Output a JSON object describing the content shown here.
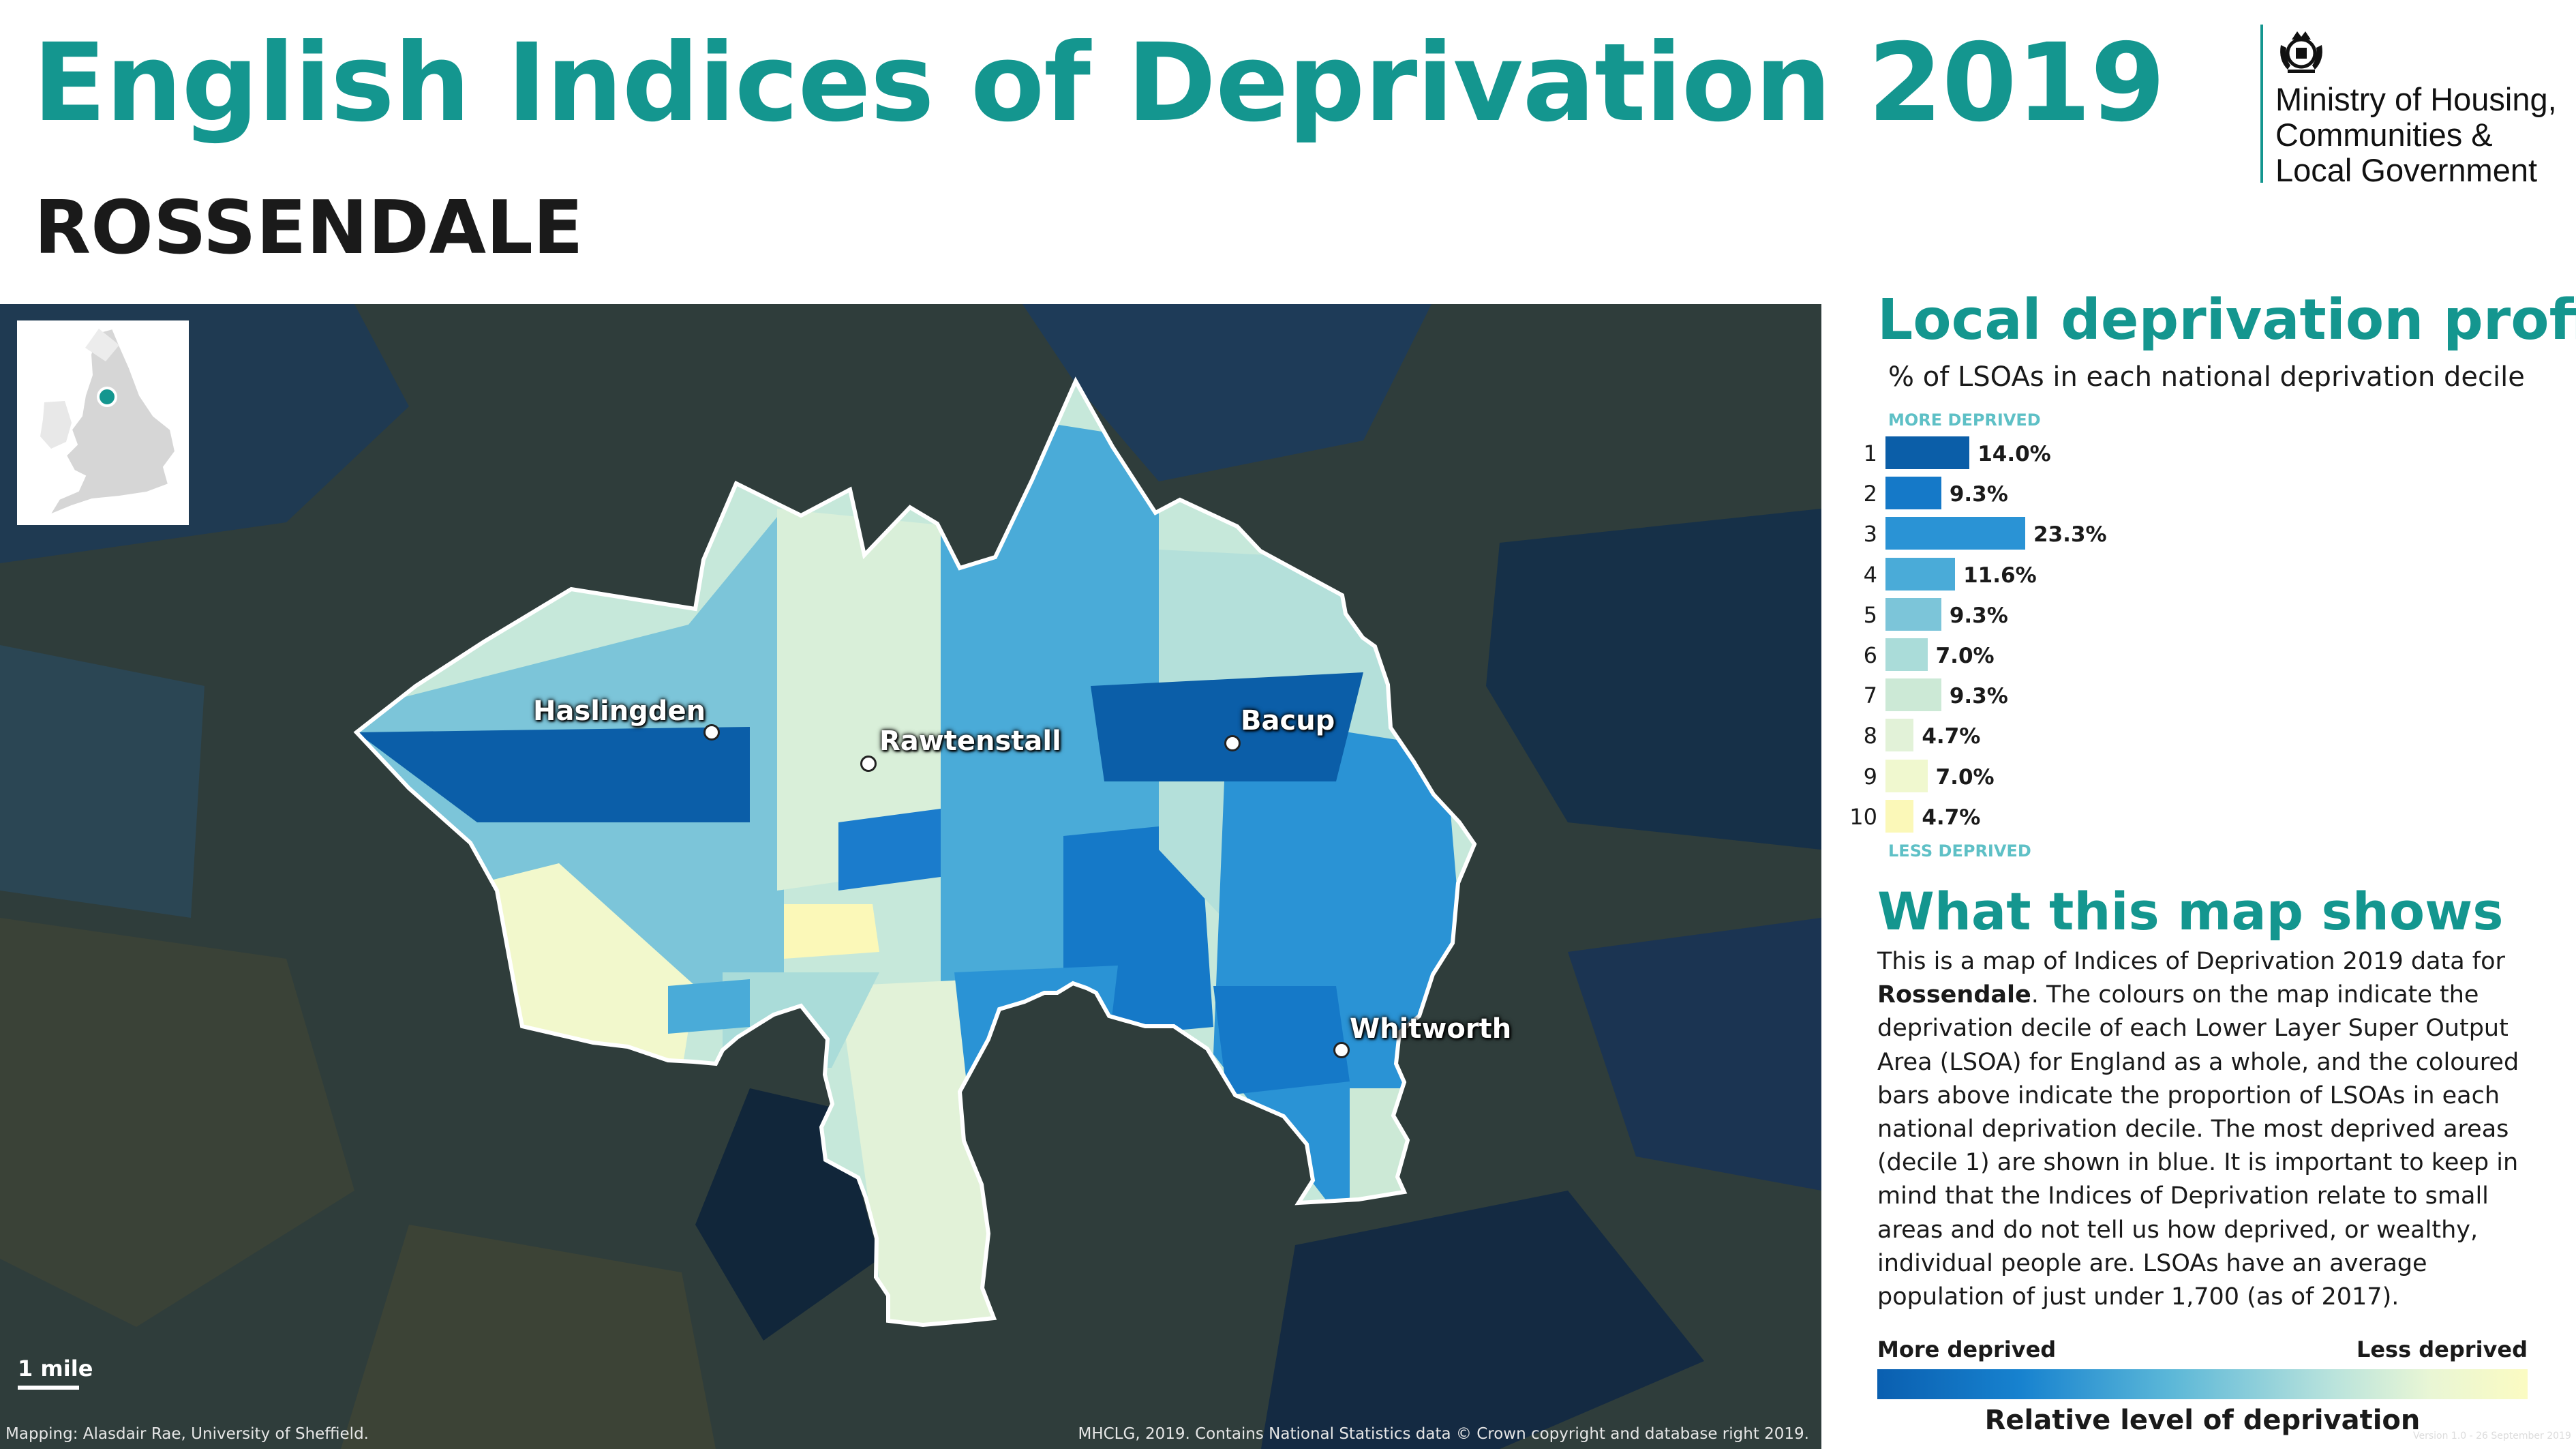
{
  "header": {
    "title": "English Indices of Deprivation 2019",
    "subtitle": "ROSSENDALE"
  },
  "organisation": {
    "name_lines": [
      "Ministry of Housing,",
      "Communities &",
      "Local Government"
    ],
    "crest_icon": "royal-crest-icon"
  },
  "map": {
    "places": [
      {
        "name": "Haslingden"
      },
      {
        "name": "Rawtenstall"
      },
      {
        "name": "Bacup"
      },
      {
        "name": "Whitworth"
      }
    ],
    "scale_label": "1 mile",
    "credit_left": "Mapping: Alasdair Rae, University of Sheffield.",
    "credit_right": "MHCLG, 2019. Contains National Statistics data © Crown copyright and database right 2019.",
    "colors": {
      "background": "#2f3d3b",
      "boundary": "#ffffff",
      "inset_highlight": "#14968f"
    }
  },
  "profile": {
    "title": "Local deprivation profile",
    "subtitle": "% of LSOAs in each national deprivation decile",
    "more_label": "MORE DEPRIVED",
    "less_label": "LESS DEPRIVED",
    "deciles": [
      {
        "decile": "1",
        "percent": 14.0,
        "label": "14.0%",
        "color": "#0b5ea8"
      },
      {
        "decile": "2",
        "percent": 9.3,
        "label": "9.3%",
        "color": "#1579c8"
      },
      {
        "decile": "3",
        "percent": 23.3,
        "label": "23.3%",
        "color": "#2a93d5"
      },
      {
        "decile": "4",
        "percent": 11.6,
        "label": "11.6%",
        "color": "#4aabd8"
      },
      {
        "decile": "5",
        "percent": 9.3,
        "label": "9.3%",
        "color": "#7cc5d9"
      },
      {
        "decile": "6",
        "percent": 7.0,
        "label": "7.0%",
        "color": "#aadcd9"
      },
      {
        "decile": "7",
        "percent": 9.3,
        "label": "9.3%",
        "color": "#cce9d6"
      },
      {
        "decile": "8",
        "percent": 4.7,
        "label": "4.7%",
        "color": "#e2f2d8"
      },
      {
        "decile": "9",
        "percent": 7.0,
        "label": "7.0%",
        "color": "#f0f8cf"
      },
      {
        "decile": "10",
        "percent": 4.7,
        "label": "4.7%",
        "color": "#fbf8b8"
      }
    ]
  },
  "explanation": {
    "title": "What this map shows",
    "text_before": "This is a map of Indices of Deprivation 2019 data for ",
    "area_name": "Rossendale",
    "text_after": ". The colours on the map indicate the deprivation decile of each Lower Layer Super Output Area (LSOA) for England as a whole, and the coloured bars above indicate the proportion of LSOAs in each national deprivation decile. The most deprived areas (decile 1) are shown in blue. It is important to keep in mind that the Indices of Deprivation relate to small areas and do not tell us how deprived, or wealthy, individual people are. LSOAs have an average population of just under 1,700 (as of 2017)."
  },
  "legend": {
    "more_label": "More deprived",
    "less_label": "Less deprived",
    "caption": "Relative level of deprivation"
  },
  "footer": {
    "version": "Version 1.0 - 26 September 2019"
  }
}
